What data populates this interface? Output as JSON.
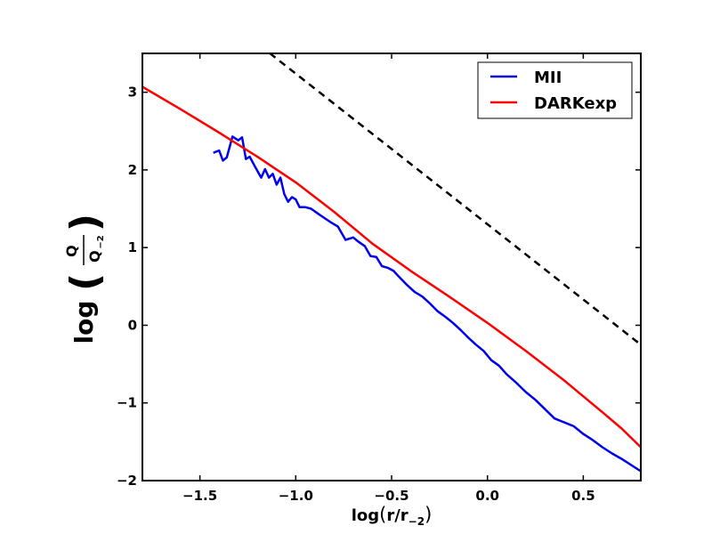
{
  "chart_data": {
    "type": "line",
    "title": "",
    "xlabel": {
      "main": "log",
      "paren_open": "(",
      "r": "r/r",
      "sub": "−2",
      "paren_close": ")"
    },
    "ylabel": {
      "main": "log",
      "paren_open": "(",
      "num": "Q",
      "den": "Q",
      "den_sub": "−2",
      "paren_close": ")"
    },
    "xlim": [
      -1.8,
      0.8
    ],
    "ylim": [
      -2,
      3.5
    ],
    "xticks": [
      -1.5,
      -1.0,
      -0.5,
      0.0,
      0.5
    ],
    "xtick_labels": [
      "−1.5",
      "−1.0",
      "−0.5",
      "0.0",
      "0.5"
    ],
    "yticks": [
      -2,
      -1,
      0,
      1,
      2,
      3
    ],
    "ytick_labels": [
      "−2",
      "−1",
      "0",
      "1",
      "2",
      "3"
    ],
    "grid": false,
    "legend_position": "top-right",
    "series": [
      {
        "name": "MII",
        "color": "#0000ee",
        "style": "solid",
        "x": [
          -1.43,
          -1.4,
          -1.38,
          -1.36,
          -1.33,
          -1.3,
          -1.28,
          -1.26,
          -1.24,
          -1.21,
          -1.18,
          -1.16,
          -1.14,
          -1.12,
          -1.1,
          -1.08,
          -1.06,
          -1.04,
          -1.02,
          -1.0,
          -0.98,
          -0.95,
          -0.92,
          -0.88,
          -0.85,
          -0.82,
          -0.78,
          -0.74,
          -0.7,
          -0.67,
          -0.64,
          -0.61,
          -0.58,
          -0.55,
          -0.52,
          -0.49,
          -0.46,
          -0.42,
          -0.38,
          -0.34,
          -0.3,
          -0.26,
          -0.22,
          -0.18,
          -0.14,
          -0.1,
          -0.06,
          -0.02,
          0.02,
          0.06,
          0.1,
          0.15,
          0.2,
          0.25,
          0.3,
          0.35,
          0.4,
          0.45,
          0.5,
          0.55,
          0.6,
          0.65,
          0.7,
          0.75,
          0.8
        ],
        "y": [
          2.22,
          2.25,
          2.12,
          2.16,
          2.43,
          2.38,
          2.42,
          2.14,
          2.17,
          2.03,
          1.9,
          2.01,
          1.9,
          1.95,
          1.81,
          1.9,
          1.69,
          1.59,
          1.65,
          1.62,
          1.52,
          1.52,
          1.5,
          1.43,
          1.38,
          1.33,
          1.27,
          1.1,
          1.13,
          1.07,
          1.02,
          0.89,
          0.88,
          0.76,
          0.74,
          0.7,
          0.62,
          0.52,
          0.43,
          0.37,
          0.28,
          0.18,
          0.11,
          0.03,
          -0.06,
          -0.16,
          -0.25,
          -0.33,
          -0.45,
          -0.52,
          -0.63,
          -0.74,
          -0.86,
          -0.96,
          -1.08,
          -1.2,
          -1.25,
          -1.3,
          -1.4,
          -1.48,
          -1.57,
          -1.65,
          -1.72,
          -1.8,
          -1.88
        ]
      },
      {
        "name": "DARKexp",
        "color": "#ff0000",
        "style": "solid",
        "x": [
          -1.8,
          -1.6,
          -1.4,
          -1.2,
          -1.0,
          -0.8,
          -0.6,
          -0.4,
          -0.2,
          0.0,
          0.2,
          0.4,
          0.6,
          0.7,
          0.8
        ],
        "y": [
          3.07,
          2.78,
          2.48,
          2.17,
          1.84,
          1.46,
          1.05,
          0.7,
          0.37,
          0.03,
          -0.33,
          -0.71,
          -1.12,
          -1.33,
          -1.57
        ]
      },
      {
        "name": "",
        "color": "#000000",
        "style": "dashed",
        "x": [
          -1.8,
          0.8
        ],
        "y": [
          4.79,
          -0.25
        ]
      }
    ],
    "legend": [
      "MII",
      "DARKexp"
    ]
  }
}
